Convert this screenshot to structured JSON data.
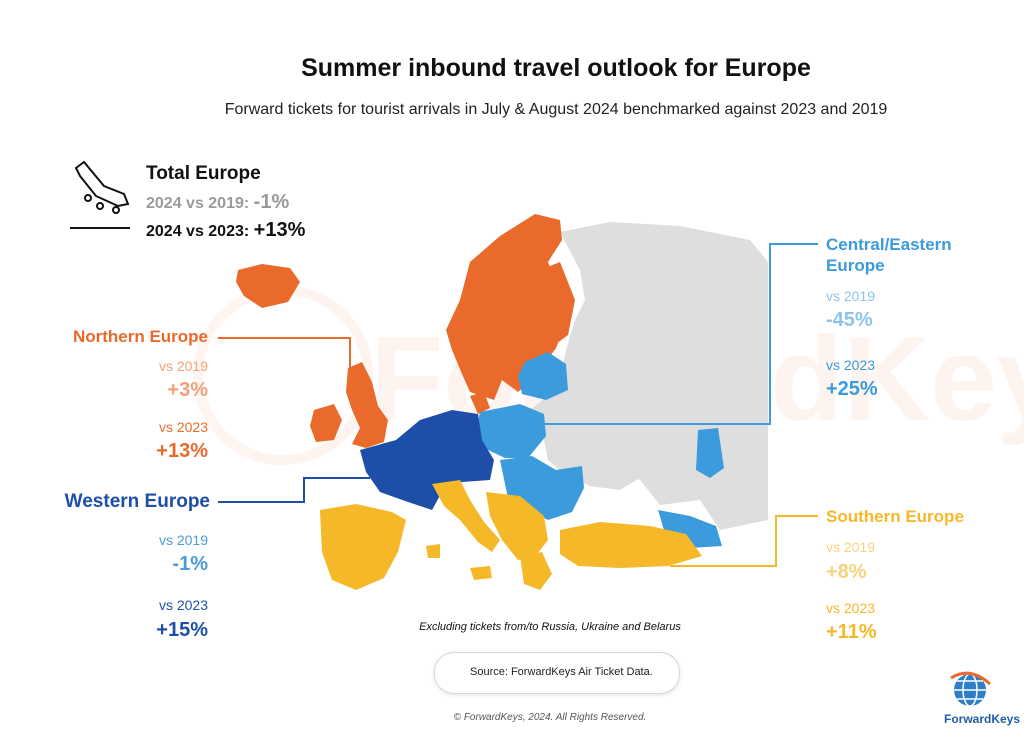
{
  "title": "Summer inbound travel outlook for Europe",
  "subtitle": "Forward tickets for tourist arrivals in July & August 2024 benchmarked against 2023 and 2019",
  "watermark": "ForwardKeys",
  "total": {
    "label": "Total Europe",
    "vs2019_label": "2024 vs 2019:",
    "vs2019_value": "-1%",
    "vs2023_label": "2024 vs 2023:",
    "vs2023_value": "+13%"
  },
  "regions": {
    "northern": {
      "name": "Northern Europe",
      "vs2019_label": "vs 2019",
      "vs2019_value": "+3%",
      "vs2023_label": "vs 2023",
      "vs2023_value": "+13%",
      "color": "#ea6a2b",
      "light": "#f2a07a"
    },
    "western": {
      "name": "Western Europe",
      "vs2019_label": "vs 2019",
      "vs2019_value": "-1%",
      "vs2023_label": "vs 2023",
      "vs2023_value": "+15%",
      "color": "#1e4fa8",
      "light": "#4c9bd9"
    },
    "central": {
      "name_line1": "Central/Eastern",
      "name_line2": "Europe",
      "vs2019_label": "vs 2019",
      "vs2019_value": "-45%",
      "vs2023_label": "vs 2023",
      "vs2023_value": "+25%",
      "color": "#3b9bdc",
      "light": "#8cc4ea"
    },
    "southern": {
      "name": "Southern Europe",
      "vs2019_label": "vs 2019",
      "vs2019_value": "+8%",
      "vs2023_label": "vs 2023",
      "vs2023_value": "+11%",
      "color": "#f5b829",
      "light": "#f8d27c"
    }
  },
  "note": "Excluding tickets from/to Russia, Ukraine and Belarus",
  "source": "Source: ForwardKeys Air Ticket Data.",
  "copyright": "© ForwardKeys, 2024. All Rights Reserved.",
  "brand": "ForwardKeys",
  "icons": [
    "airplane-landing-icon",
    "document-search-icon",
    "globe-logo-icon"
  ]
}
